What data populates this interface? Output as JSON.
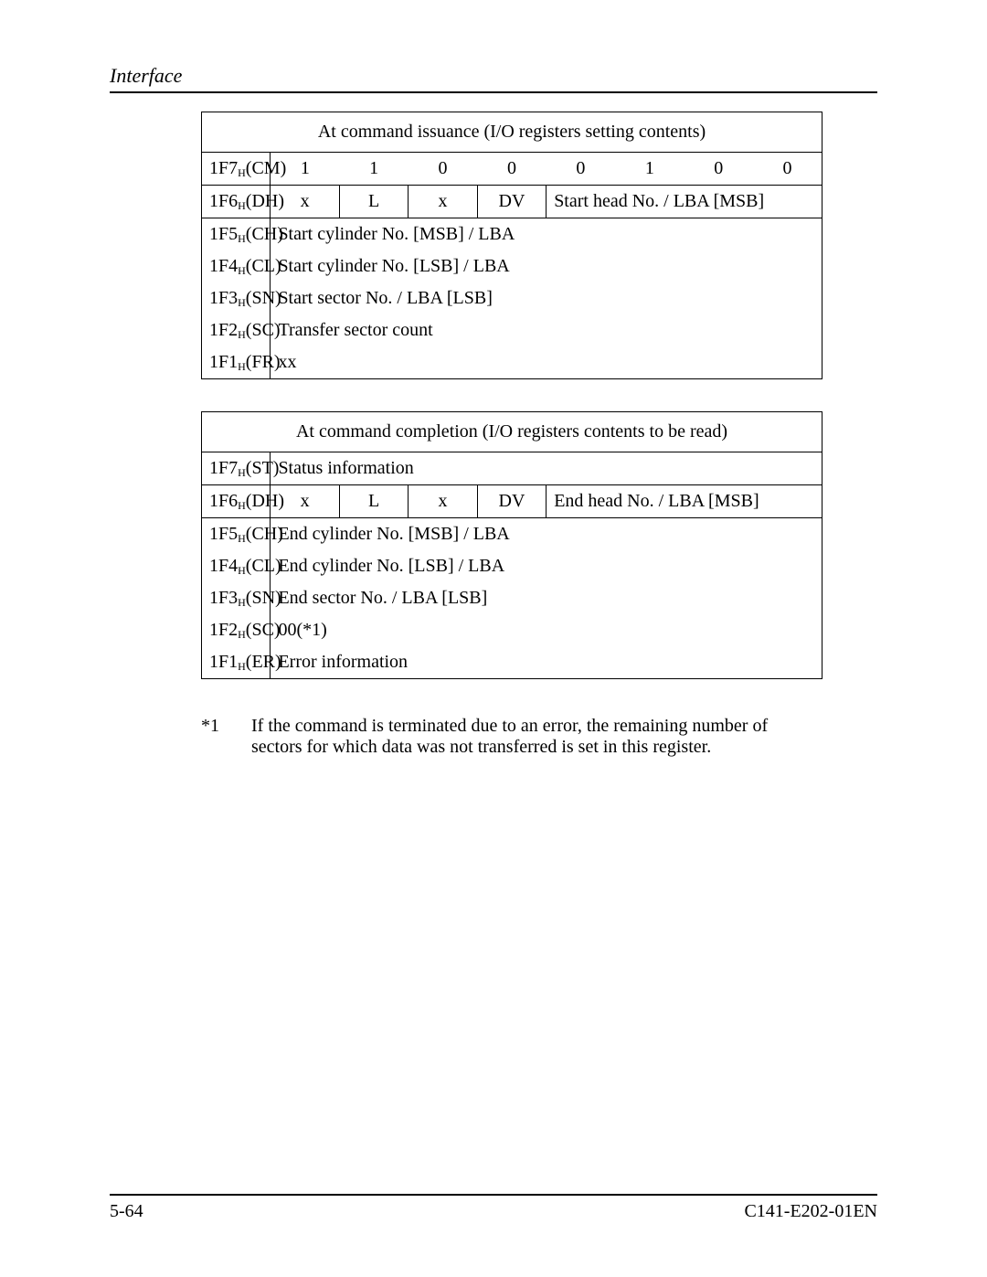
{
  "header": {
    "section": "Interface"
  },
  "footer": {
    "page": "5-64",
    "docid": "C141-E202-01EN"
  },
  "table1": {
    "title": "At command issuance (I/O registers setting contents)",
    "rows": {
      "cm": {
        "label_reg": "1F7",
        "label_sub": "H",
        "label_suffix": "(CM)",
        "bits": [
          "1",
          "1",
          "0",
          "0",
          "0",
          "1",
          "0",
          "0"
        ]
      },
      "dh": {
        "label_reg": "1F6",
        "label_sub": "H",
        "label_suffix": "(DH)",
        "b7": "x",
        "b6": "L",
        "b5": "x",
        "b4": "DV",
        "b3_0": "Start head No. / LBA [MSB]"
      },
      "ch": {
        "label_reg": "1F5",
        "label_sub": "H",
        "label_suffix": "(CH)",
        "value": "Start cylinder No. [MSB] / LBA"
      },
      "cl": {
        "label_reg": "1F4",
        "label_sub": "H",
        "label_suffix": "(CL)",
        "value": "Start cylinder No. [LSB] / LBA"
      },
      "sn": {
        "label_reg": "1F3",
        "label_sub": "H",
        "label_suffix": "(SN)",
        "value": "Start sector No. / LBA [LSB]"
      },
      "sc": {
        "label_reg": "1F2",
        "label_sub": "H",
        "label_suffix": "(SC)",
        "value": "Transfer sector count"
      },
      "fr": {
        "label_reg": "1F1",
        "label_sub": "H",
        "label_suffix": "(FR)",
        "value": "xx"
      }
    }
  },
  "table2": {
    "title": "At command completion (I/O registers contents to be read)",
    "rows": {
      "st": {
        "label_reg": "1F7",
        "label_sub": "H",
        "label_suffix": "(ST)",
        "value": "Status information"
      },
      "dh": {
        "label_reg": "1F6",
        "label_sub": "H",
        "label_suffix": "(DH)",
        "b7": "x",
        "b6": "L",
        "b5": "x",
        "b4": "DV",
        "b3_0": "End head No. / LBA [MSB]"
      },
      "ch": {
        "label_reg": "1F5",
        "label_sub": "H",
        "label_suffix": "(CH)",
        "value": "End cylinder No. [MSB] / LBA"
      },
      "cl": {
        "label_reg": "1F4",
        "label_sub": "H",
        "label_suffix": "(CL)",
        "value": "End cylinder No. [LSB] / LBA"
      },
      "sn": {
        "label_reg": "1F3",
        "label_sub": "H",
        "label_suffix": "(SN)",
        "value": "End sector No. / LBA [LSB]"
      },
      "sc": {
        "label_reg": "1F2",
        "label_sub": "H",
        "label_suffix": "(SC)",
        "value": "00(*1)"
      },
      "er": {
        "label_reg": "1F1",
        "label_sub": "H",
        "label_suffix": "(ER)",
        "value": "Error information"
      }
    }
  },
  "footnote": {
    "marker": "*1",
    "text": "If the command is terminated due to an error, the remaining number of sectors for which data was not transferred is set in this register."
  }
}
